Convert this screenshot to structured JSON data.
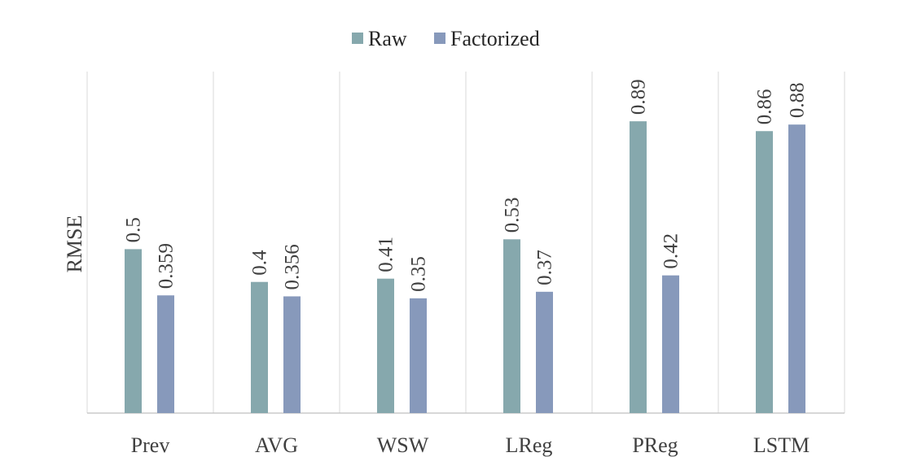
{
  "chart_data": {
    "type": "bar",
    "title": "",
    "xlabel": "",
    "ylabel": "RMSE",
    "categories": [
      "Prev",
      "AVG",
      "WSW",
      "LReg",
      "PReg",
      "LSTM"
    ],
    "series": [
      {
        "name": "Raw",
        "color": "#86a8ad",
        "values": [
          0.5,
          0.4,
          0.41,
          0.53,
          0.89,
          0.86
        ],
        "labels": [
          "0.5",
          "0.4",
          "0.41",
          "0.53",
          "0.89",
          "0.86"
        ]
      },
      {
        "name": "Factorized",
        "color": "#8799bb",
        "values": [
          0.359,
          0.356,
          0.35,
          0.37,
          0.42,
          0.88
        ],
        "labels": [
          "0.359",
          "0.356",
          "0.35",
          "0.37",
          "0.42",
          "0.88"
        ]
      }
    ],
    "ylim": [
      0,
      1
    ],
    "grid": "vertical separators between categories",
    "legend": "top-center",
    "data_labels": "rotated vertical above bars"
  }
}
